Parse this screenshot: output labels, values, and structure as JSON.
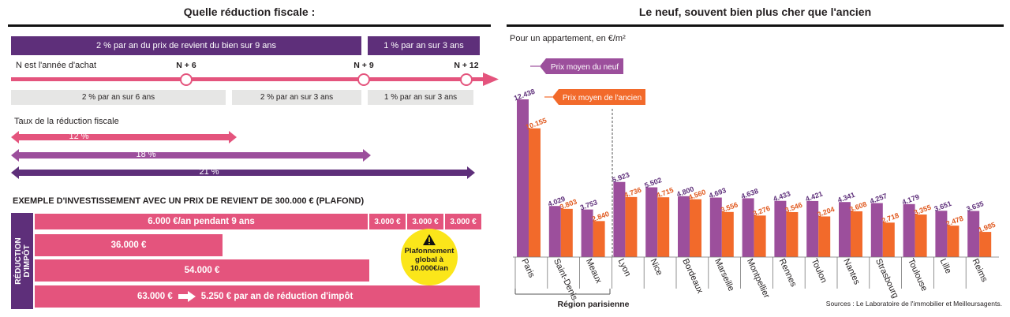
{
  "left": {
    "title": "Quelle réduction fiscale :",
    "band_9yr": "2 % par an du prix de revient du bien sur 9 ans",
    "band_3yr": "1 % par an sur 3 ans",
    "year_label": "N est l'année d'achat",
    "milestones": [
      "N + 6",
      "N + 9",
      "N + 12"
    ],
    "grey_boxes": [
      "2 % par an sur 6 ans",
      "2 % par an sur 3 ans",
      "1 % par an sur 3 ans"
    ],
    "rate_title": "Taux de la réduction fiscale",
    "rates": [
      "12 %",
      "18 %",
      "21 %"
    ],
    "colors": {
      "purple": "#5e2f7a",
      "mauve": "#9c4f9c",
      "pink": "#e4547d"
    },
    "example": {
      "title": "EXEMPLE D'INVESTISSEMENT AVEC UN PRIX DE REVIENT DE 300.000 € (PLAFOND)",
      "side_label_1": "RÉDUCTION",
      "side_label_2": "D'IMPÔT",
      "row1": "6.000 €/an pendant 9 ans",
      "segments": [
        "3.000 €",
        "3.000 €",
        "3.000 €"
      ],
      "row2": "36.000 €",
      "row3": "54.000 €",
      "row4_amount": "63.000 €",
      "row4_text": "5.250 € par an de réduction d'impôt",
      "cap_icon": "warning-icon",
      "cap_text": [
        "Plafonnement",
        "global à",
        "10.000€/an"
      ]
    }
  },
  "right": {
    "title": "Le neuf, souvent bien plus cher que l'ancien",
    "subtitle": "Pour un appartement, en €/m²",
    "region_label": "Région parisienne",
    "source": "Sources : Le Laboratoire de l'immobilier et Meilleursagents."
  },
  "chart_data": {
    "type": "bar",
    "title": "Le neuf, souvent bien plus cher que l'ancien",
    "ylabel": "Pour un appartement, en €/m²",
    "ylim": [
      0,
      12438
    ],
    "categories": [
      "Paris",
      "Saint-Denis",
      "Meaux",
      "Lyon",
      "Nice",
      "Bordeaux",
      "Marseille",
      "Montpellier",
      "Rennes",
      "Toulon",
      "Nantes",
      "Strasbourg",
      "Toulouse",
      "Lille",
      "Reims"
    ],
    "series": [
      {
        "name": "Prix moyen du neuf",
        "color": "#9c4f9c",
        "values": [
          12438,
          4029,
          3753,
          5923,
          5502,
          4800,
          4693,
          4638,
          4433,
          4421,
          4341,
          4257,
          4179,
          3651,
          3635
        ],
        "labels": [
          "12.438",
          "4.029",
          "3.753",
          "5.923",
          "5.502",
          "4.800",
          "4.693",
          "4.638",
          "4.433",
          "4.421",
          "4.341",
          "4.257",
          "4.179",
          "3.651",
          "3.635"
        ]
      },
      {
        "name": "Prix moyen de l'ancien",
        "color": "#f26a2b",
        "values": [
          10155,
          3803,
          2840,
          4736,
          4715,
          4560,
          3556,
          3276,
          3546,
          3204,
          3608,
          2718,
          3355,
          2478,
          1985
        ],
        "labels": [
          "10.155",
          "3.803",
          "2.840",
          "4.736",
          "4.715",
          "4.560",
          "3.556",
          "3.276",
          "3.546",
          "3.204",
          "3.608",
          "2.718",
          "3.355",
          "2.478",
          "1.985"
        ]
      }
    ]
  }
}
